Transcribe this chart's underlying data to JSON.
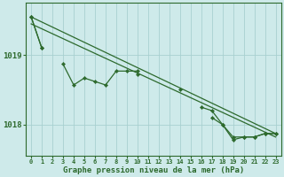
{
  "xlabel": "Graphe pression niveau de la mer (hPa)",
  "background_color": "#ceeaea",
  "grid_color": "#a8d0d0",
  "line_color": "#2d6a2d",
  "text_color": "#2d6a2d",
  "hours": [
    0,
    1,
    2,
    3,
    4,
    5,
    6,
    7,
    8,
    9,
    10,
    11,
    12,
    13,
    14,
    15,
    16,
    17,
    18,
    19,
    20,
    21,
    22,
    23
  ],
  "line_main": [
    1019.55,
    1019.1,
    null,
    1018.87,
    1018.57,
    1018.67,
    1018.62,
    1018.57,
    1018.77,
    1018.77,
    1018.77,
    null,
    null,
    null,
    1018.5,
    null,
    1018.25,
    1018.2,
    1018.0,
    1017.82,
    1017.82,
    1017.82,
    1017.87,
    1017.87
  ],
  "line_smooth": [
    1019.55,
    1019.1,
    null,
    null,
    null,
    null,
    null,
    null,
    null,
    null,
    1018.72,
    null,
    null,
    null,
    null,
    null,
    null,
    1018.1,
    1018.0,
    1017.78,
    1017.82,
    1017.82,
    1017.87,
    1017.87
  ],
  "line_trend_x": [
    0,
    23
  ],
  "line_trend_y": [
    1019.55,
    1017.87
  ],
  "line_trend2_x": [
    0,
    23
  ],
  "line_trend2_y": [
    1019.45,
    1017.82
  ],
  "ylim": [
    1017.55,
    1019.75
  ],
  "yticks": [
    1018,
    1019
  ],
  "xticks": [
    0,
    1,
    2,
    3,
    4,
    5,
    6,
    7,
    8,
    9,
    10,
    11,
    12,
    13,
    14,
    15,
    16,
    17,
    18,
    19,
    20,
    21,
    22,
    23
  ]
}
